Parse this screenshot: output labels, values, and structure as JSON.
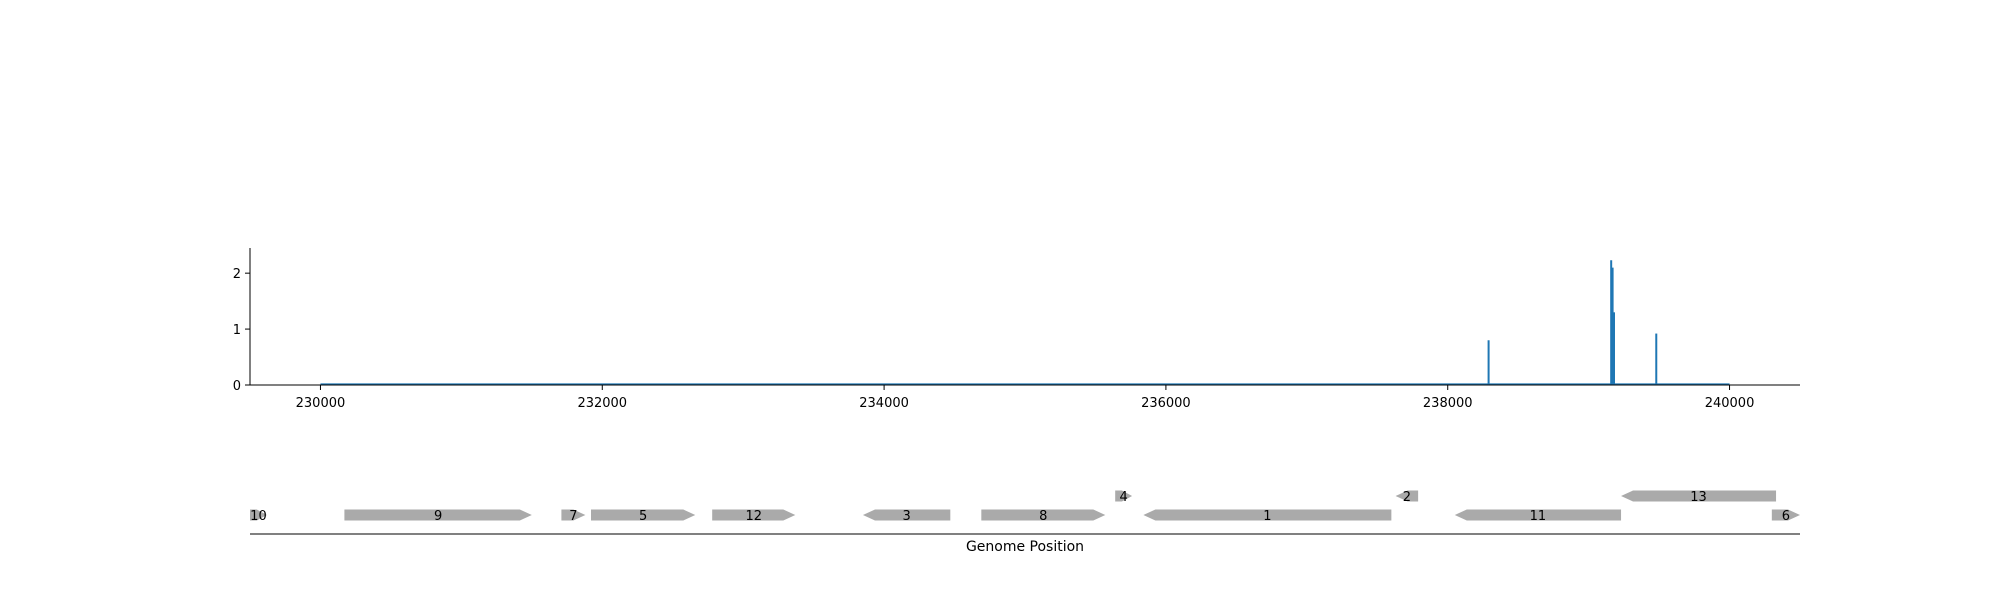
{
  "chart_data": [
    {
      "type": "line",
      "title": "",
      "xlabel": "",
      "ylabel": "",
      "xlim": [
        229500,
        240500
      ],
      "ylim": [
        0,
        2.45
      ],
      "x_ticks": [
        230000,
        232000,
        234000,
        236000,
        238000,
        240000
      ],
      "x_tick_labels": [
        "230000",
        "232000",
        "234000",
        "236000",
        "238000",
        "240000"
      ],
      "y_ticks": [
        0,
        1,
        2
      ],
      "y_tick_labels": [
        "0",
        "1",
        "2"
      ],
      "baseline": {
        "x_start": 230000,
        "x_end": 240000,
        "y": 0
      },
      "peaks": [
        {
          "x": 238290,
          "y": 0.8
        },
        {
          "x": 239160,
          "y": 2.23
        },
        {
          "x": 239170,
          "y": 2.1
        },
        {
          "x": 239180,
          "y": 1.3
        },
        {
          "x": 239480,
          "y": 0.92
        }
      ],
      "line_color": "#1f77b4",
      "grid": false
    },
    {
      "type": "gene-track",
      "xlabel": "Genome Position",
      "xlim": [
        229500,
        240500
      ],
      "genes": [
        {
          "label": "10",
          "start": 229500,
          "end": 229620,
          "strand": "+",
          "row": 0
        },
        {
          "label": "9",
          "start": 230170,
          "end": 231500,
          "strand": "+",
          "row": 0
        },
        {
          "label": "7",
          "start": 231710,
          "end": 231880,
          "strand": "+",
          "row": 0
        },
        {
          "label": "5",
          "start": 231920,
          "end": 232660,
          "strand": "+",
          "row": 0
        },
        {
          "label": "12",
          "start": 232780,
          "end": 233370,
          "strand": "+",
          "row": 0
        },
        {
          "label": "3",
          "start": 233850,
          "end": 234470,
          "strand": "-",
          "row": 0
        },
        {
          "label": "8",
          "start": 234690,
          "end": 235570,
          "strand": "+",
          "row": 0
        },
        {
          "label": "4",
          "start": 235640,
          "end": 235760,
          "strand": "+",
          "row": 1
        },
        {
          "label": "1",
          "start": 235840,
          "end": 237600,
          "strand": "-",
          "row": 0
        },
        {
          "label": "2",
          "start": 237630,
          "end": 237790,
          "strand": "-",
          "row": 1
        },
        {
          "label": "11",
          "start": 238050,
          "end": 239230,
          "strand": "-",
          "row": 0
        },
        {
          "label": "13",
          "start": 239230,
          "end": 240330,
          "strand": "-",
          "row": 1
        },
        {
          "label": "6",
          "start": 240300,
          "end": 240500,
          "strand": "+",
          "row": 0
        }
      ],
      "gene_color": "#aaaaaa"
    }
  ]
}
